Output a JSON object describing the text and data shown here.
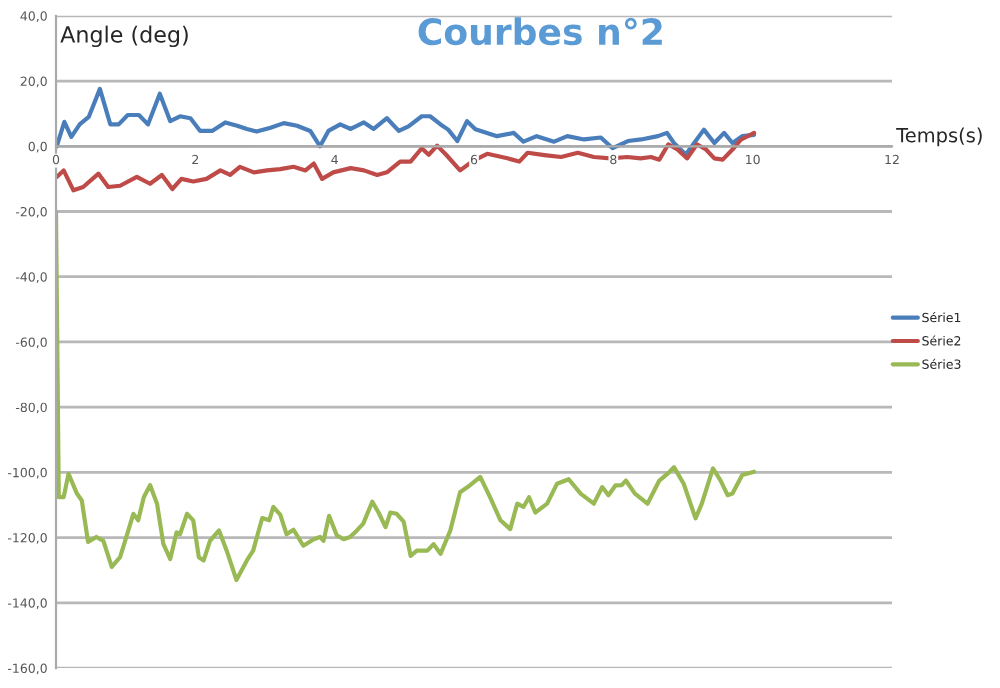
{
  "chart_data": {
    "type": "line",
    "title": "Courbes n°2",
    "ylabel": "Angle (deg)",
    "xlabel": "Temps(s)",
    "xlim": [
      0,
      12
    ],
    "xticks": [
      0,
      2,
      4,
      6,
      8,
      10,
      12
    ],
    "ylim": [
      -160,
      40
    ],
    "yticks": [
      {
        "value": 40,
        "label": "40,0"
      },
      {
        "value": 20,
        "label": "20,0"
      },
      {
        "value": 0,
        "label": "0,0"
      },
      {
        "value": -20,
        "label": "-20,0"
      },
      {
        "value": -40,
        "label": "-40,0"
      },
      {
        "value": -60,
        "label": "-60,0"
      },
      {
        "value": -80,
        "label": "-80,0"
      },
      {
        "value": -100,
        "label": "-100,0"
      },
      {
        "value": -120,
        "label": "-120,0"
      },
      {
        "value": -140,
        "label": "-140,0"
      },
      {
        "value": -160,
        "label": "-160,0"
      }
    ],
    "grid": "y",
    "legend": "right",
    "marker": "none",
    "line_style": "solid",
    "series": [
      {
        "name": "Série1",
        "color": "#4a7ebb",
        "x": [
          0.01,
          0.12,
          0.22,
          0.34,
          0.47,
          0.63,
          0.78,
          0.9,
          1.03,
          1.19,
          1.32,
          1.49,
          1.64,
          1.78,
          1.93,
          2.07,
          2.24,
          2.43,
          2.6,
          2.74,
          2.88,
          3.08,
          3.27,
          3.46,
          3.65,
          3.79,
          3.91,
          4.08,
          4.23,
          4.42,
          4.56,
          4.75,
          4.92,
          5.06,
          5.25,
          5.37,
          5.52,
          5.63,
          5.76,
          5.9,
          6.02,
          6.33,
          6.57,
          6.71,
          6.9,
          7.15,
          7.34,
          7.58,
          7.82,
          7.99,
          8.21,
          8.4,
          8.64,
          8.77,
          8.87,
          9.04,
          9.16,
          9.3,
          9.45,
          9.59,
          9.71,
          9.85,
          10.02
        ],
        "values": [
          0,
          7.5,
          2.9,
          6.7,
          9,
          17.6,
          6.7,
          6.7,
          9.6,
          9.6,
          6.7,
          16.1,
          7.7,
          9.2,
          8.6,
          4.7,
          4.7,
          7.3,
          6.3,
          5.3,
          4.5,
          5.7,
          7.1,
          6.3,
          4.7,
          0,
          4.7,
          6.7,
          5.3,
          7.3,
          5.3,
          8.6,
          4.7,
          6.1,
          9.2,
          9.2,
          6.7,
          5.1,
          1.6,
          7.7,
          5.2,
          3.1,
          4.1,
          1.4,
          3.1,
          1.4,
          3.1,
          2.1,
          2.7,
          -0.6,
          1.6,
          2.1,
          3.1,
          4.1,
          1,
          -2.5,
          1,
          5.1,
          1,
          4.1,
          1,
          3.1,
          3.5
        ]
      },
      {
        "name": "Série2",
        "color": "#be4b48",
        "x": [
          0.01,
          0.11,
          0.25,
          0.39,
          0.61,
          0.75,
          0.92,
          1.16,
          1.35,
          1.52,
          1.67,
          1.8,
          1.97,
          2.16,
          2.36,
          2.5,
          2.64,
          2.84,
          3.03,
          3.22,
          3.41,
          3.58,
          3.7,
          3.82,
          3.98,
          4.23,
          4.42,
          4.61,
          4.75,
          4.94,
          5.09,
          5.25,
          5.35,
          5.47,
          5.6,
          5.8,
          6.0,
          6.19,
          6.48,
          6.65,
          6.77,
          7.01,
          7.25,
          7.49,
          7.72,
          7.96,
          8.2,
          8.39,
          8.54,
          8.66,
          8.79,
          8.92,
          9.06,
          9.2,
          9.33,
          9.45,
          9.57,
          9.71,
          9.83,
          10.02
        ],
        "values": [
          -9.4,
          -7.4,
          -13.5,
          -12.5,
          -8.4,
          -12.5,
          -12.1,
          -9.4,
          -11.5,
          -8.8,
          -13.1,
          -10,
          -10.8,
          -10,
          -7.4,
          -8.8,
          -6.3,
          -8,
          -7.4,
          -7,
          -6.3,
          -7.4,
          -5.3,
          -10,
          -8,
          -6.7,
          -7.4,
          -8.8,
          -8,
          -4.7,
          -4.7,
          -0.6,
          -2.6,
          0.2,
          -2.6,
          -7.4,
          -4.3,
          -2.3,
          -3.7,
          -4.7,
          -2,
          -2.7,
          -3.3,
          -2,
          -3.3,
          -3.7,
          -3.3,
          -3.7,
          -3.3,
          -4.1,
          0.6,
          -1,
          -3.7,
          0.6,
          -1,
          -3.7,
          -4.1,
          -1,
          2,
          4.1
        ]
      },
      {
        "name": "Série3",
        "color": "#98b954",
        "x": [
          0,
          0.04,
          0.11,
          0.18,
          0.3,
          0.37,
          0.46,
          0.58,
          0.68,
          0.8,
          0.92,
          1.01,
          1.11,
          1.18,
          1.26,
          1.35,
          1.45,
          1.54,
          1.64,
          1.73,
          1.78,
          1.88,
          1.97,
          2.05,
          2.12,
          2.21,
          2.34,
          2.45,
          2.59,
          2.74,
          2.83,
          2.96,
          3.06,
          3.12,
          3.22,
          3.31,
          3.41,
          3.55,
          3.7,
          3.79,
          3.84,
          3.92,
          4.03,
          4.13,
          4.22,
          4.32,
          4.41,
          4.54,
          4.63,
          4.73,
          4.8,
          4.89,
          4.99,
          5.09,
          5.18,
          5.33,
          5.42,
          5.52,
          5.66,
          5.8,
          5.94,
          6.09,
          6.23,
          6.38,
          6.52,
          6.62,
          6.71,
          6.79,
          6.88,
          7.05,
          7.19,
          7.36,
          7.53,
          7.72,
          7.84,
          7.93,
          8.03,
          8.12,
          8.18,
          8.31,
          8.49,
          8.66,
          8.78,
          8.87,
          9.01,
          9.18,
          9.27,
          9.43,
          9.54,
          9.64,
          9.71,
          9.85,
          10.02
        ],
        "values": [
          -20,
          -107.6,
          -107.6,
          -100.4,
          -106.5,
          -108.6,
          -121.3,
          -119.8,
          -121,
          -129,
          -126,
          -119.8,
          -112.7,
          -114.7,
          -107.6,
          -103.9,
          -109.6,
          -121.9,
          -126.6,
          -118.4,
          -119,
          -112.7,
          -114.7,
          -126,
          -127,
          -121,
          -117.8,
          -124,
          -133,
          -127,
          -124,
          -114,
          -114.7,
          -110.6,
          -113,
          -119,
          -117.6,
          -122.5,
          -120.5,
          -119.8,
          -121,
          -113.3,
          -119.3,
          -120.5,
          -119.8,
          -117.8,
          -115.7,
          -109,
          -112.3,
          -116.8,
          -112.3,
          -112.7,
          -115.1,
          -125.6,
          -124,
          -124,
          -122,
          -125,
          -117.8,
          -106.1,
          -104,
          -101.4,
          -107.6,
          -114.7,
          -117.4,
          -109.6,
          -110.6,
          -107.6,
          -112.3,
          -109.6,
          -103.5,
          -102.1,
          -106.5,
          -109.6,
          -104.5,
          -107,
          -104,
          -103.9,
          -102.5,
          -106.5,
          -109.6,
          -102.5,
          -100.4,
          -98.4,
          -103.5,
          -114.1,
          -109.6,
          -98.8,
          -102.5,
          -107,
          -106.5,
          -100.8,
          -99.8
        ]
      }
    ]
  }
}
